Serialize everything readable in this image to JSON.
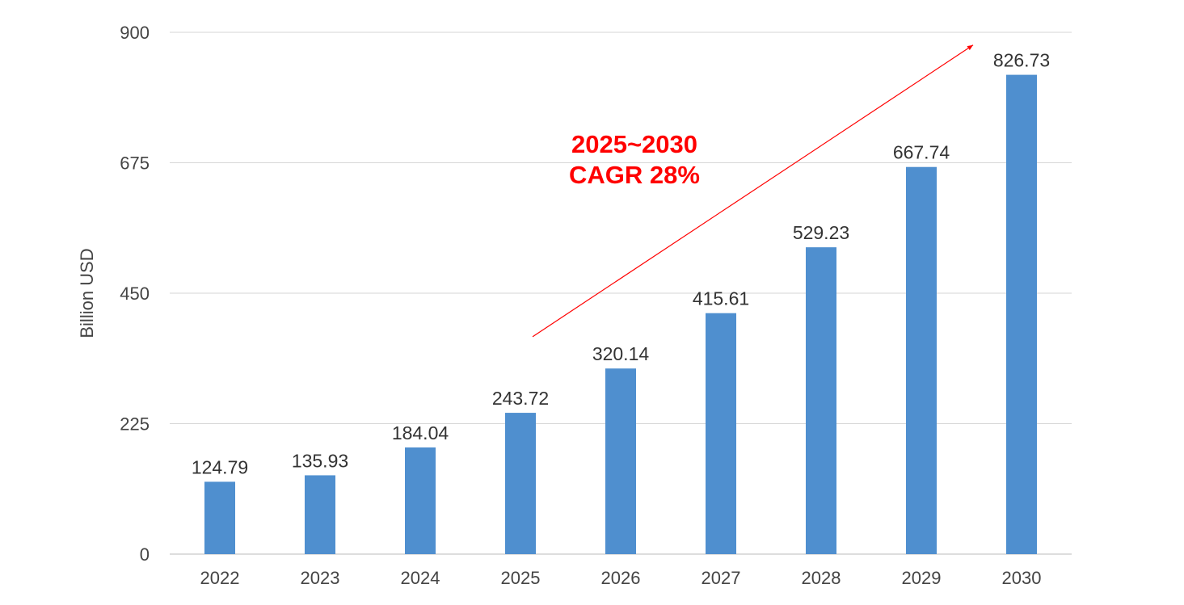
{
  "chart_data": {
    "type": "bar",
    "title": "",
    "xlabel": "",
    "ylabel": "Billion USD",
    "ylim": [
      0,
      900
    ],
    "yticks": [
      0,
      225,
      450,
      675,
      900
    ],
    "grid": true,
    "categories": [
      "2022",
      "2023",
      "2024",
      "2025",
      "2026",
      "2027",
      "2028",
      "2029",
      "2030"
    ],
    "values": [
      124.79,
      135.93,
      184.04,
      243.72,
      320.14,
      415.61,
      529.23,
      667.74,
      826.73
    ],
    "data_labels": [
      "124.79",
      "135.93",
      "184.04",
      "243.72",
      "320.14",
      "415.61",
      "529.23",
      "667.74",
      "826.73"
    ],
    "bar_color": "#4f8fcf",
    "annotation": {
      "lines": [
        "2025~2030",
        "CAGR 28%"
      ],
      "color": "#ff0000",
      "arrow_from": {
        "category": "2025",
        "value": 375
      },
      "arrow_to": {
        "category": "2029.5",
        "value": 878
      }
    }
  }
}
